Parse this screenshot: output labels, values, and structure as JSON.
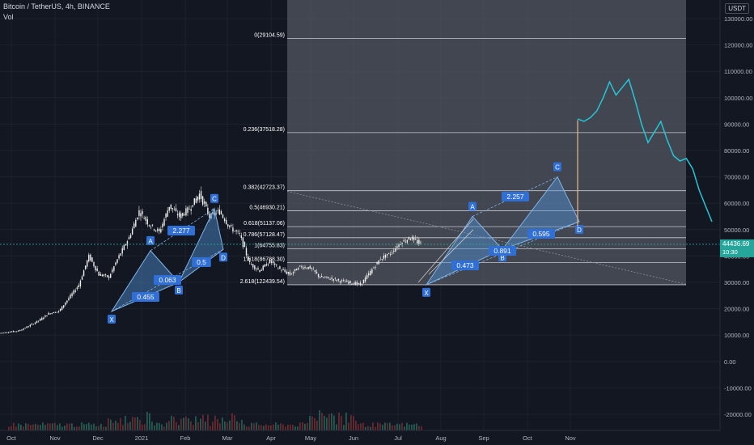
{
  "header": {
    "symbol_line": "Bitcoin / TetherUS, 4h, BINANCE",
    "indicator": "Vol",
    "currency_button": "USDT"
  },
  "colors": {
    "background": "#131722",
    "fib_zone": "#535761",
    "pattern_fill": "#4f95d6",
    "pattern_line": "#7fb2e8",
    "label_bg": "#2f6fd6",
    "projection": "#24c6d6",
    "up_candle": "#26a69a",
    "down_candle": "#ef5350",
    "vertical_line": "#e9b88a"
  },
  "price_axis": {
    "ticks": [
      "130000.00",
      "120000.00",
      "110000.00",
      "100000.00",
      "90000.00",
      "80000.00",
      "70000.00",
      "60000.00",
      "50000.00",
      "40000.00",
      "30000.00",
      "20000.00",
      "10000.00",
      "0.00",
      "-10000.00",
      "-20000.00"
    ],
    "current_price": "44436.69",
    "countdown": "10:30",
    "hidden_tick": "40000.00"
  },
  "time_axis": {
    "labels": [
      "Oct",
      "Nov",
      "Dec",
      "2021",
      "Feb",
      "Mar",
      "Apr",
      "May",
      "Jun",
      "Jul",
      "Aug",
      "Sep",
      "Oct",
      "Nov"
    ]
  },
  "fib_levels": [
    {
      "label": "2.618(122439.54)"
    },
    {
      "label": "1.618(86788.30)"
    },
    {
      "label": "1(64755.83)"
    },
    {
      "label": "0.786(57128.47)"
    },
    {
      "label": "0.618(51137.06)"
    },
    {
      "label": "0.5(46930.21)"
    },
    {
      "label": "0.382(42723.37)"
    },
    {
      "label": "0.236(37518.28)"
    },
    {
      "label": "0(29104.59)"
    }
  ],
  "pattern_1": {
    "points": [
      "X",
      "A",
      "B",
      "C",
      "D"
    ],
    "ratios": [
      "0.455",
      "0.063",
      "2.277",
      "0.5"
    ]
  },
  "pattern_2": {
    "points": [
      "X",
      "A",
      "B",
      "C",
      "D"
    ],
    "ratios": [
      "0.473",
      "0.891",
      "2.257",
      "0.595"
    ]
  },
  "chart_data": {
    "type": "line",
    "title": "Bitcoin / TetherUS, 4h, BINANCE",
    "ylabel": "",
    "xlabel": "",
    "ylim": [
      -25000,
      135000
    ],
    "x_ticks": [
      "Oct",
      "Nov",
      "Dec",
      "2021",
      "Feb",
      "Mar",
      "Apr",
      "May",
      "Jun",
      "Jul",
      "Aug",
      "Sep",
      "Oct",
      "Nov"
    ],
    "series": [
      {
        "values": [
          10700,
          11200,
          11600,
          13400,
          15500,
          18200,
          19000,
          24000,
          29000,
          40000,
          33000,
          32000,
          40000,
          47000,
          57000,
          52000,
          49000,
          59000,
          55000,
          58000,
          63500,
          55000,
          57000,
          51000,
          48000,
          37000,
          34500,
          38000,
          35000,
          33000,
          36000,
          35500,
          32000,
          31500,
          30500,
          30000,
          29100,
          34000,
          39000,
          41000,
          45000,
          47000,
          44436
        ]
      },
      {
        "values": [
          92000,
          91000,
          92500,
          95000,
          100000,
          106000,
          101000,
          104000,
          107000,
          99000,
          90000,
          83000,
          87000,
          91000,
          84000,
          78000,
          76000,
          77000,
          73000,
          65000,
          59000,
          53000
        ]
      }
    ],
    "fibonacci": {
      "swing_low": 29104.59,
      "swing_high": 64755.83,
      "levels": [
        0,
        0.236,
        0.382,
        0.5,
        0.618,
        0.786,
        1,
        1.618,
        2.618
      ],
      "prices": [
        29104.59,
        37518.28,
        42723.37,
        46930.21,
        51137.06,
        57128.47,
        64755.83,
        86788.3,
        122439.54
      ]
    },
    "patterns": [
      {
        "points": [
          "X",
          "A",
          "B",
          "C",
          "D"
        ],
        "prices": [
          19000,
          42000,
          30000,
          58000,
          42500
        ],
        "ratios": [
          0.455,
          0.063,
          2.277,
          0.5
        ]
      },
      {
        "points": [
          "X",
          "A",
          "B",
          "C",
          "D"
        ],
        "prices": [
          29100,
          55000,
          42500,
          70000,
          53000
        ],
        "ratios": [
          0.473,
          0.891,
          2.257,
          0.595
        ]
      }
    ],
    "grid": true
  }
}
